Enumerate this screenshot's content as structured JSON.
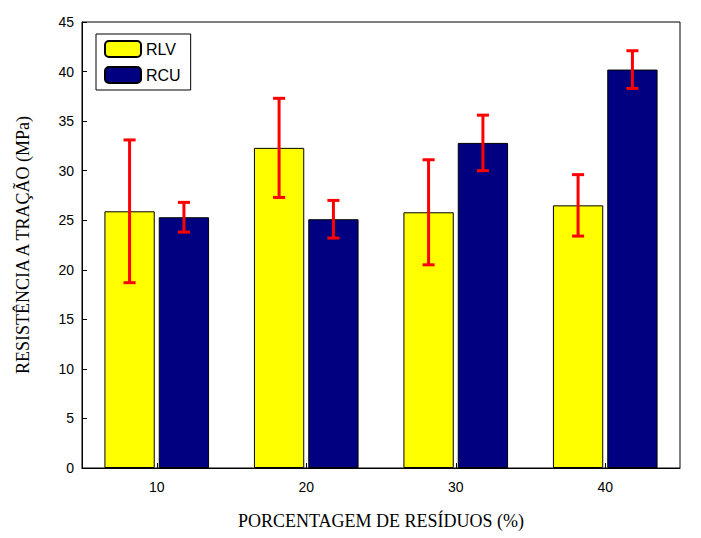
{
  "chart_data": {
    "type": "bar",
    "xlabel": "PORCENTAGEM DE RESÍDUOS (%)",
    "ylabel": "RESISTÊNCIA A TRAÇÃO (MPa)",
    "categories": [
      "10",
      "20",
      "30",
      "40"
    ],
    "series": [
      {
        "name": "RLV",
        "color": "#ffff00",
        "values": [
          25.9,
          32.3,
          25.8,
          26.5
        ],
        "errors": [
          7.2,
          5.0,
          5.3,
          3.1
        ]
      },
      {
        "name": "RCU",
        "color": "#000080",
        "values": [
          25.3,
          25.1,
          32.8,
          40.2
        ],
        "errors": [
          1.5,
          1.9,
          2.8,
          1.9
        ]
      }
    ],
    "ylim": [
      0,
      45
    ],
    "yticks": [
      0,
      5,
      10,
      15,
      20,
      25,
      30,
      35,
      40,
      45
    ],
    "grid": false,
    "legend": "upper left"
  }
}
